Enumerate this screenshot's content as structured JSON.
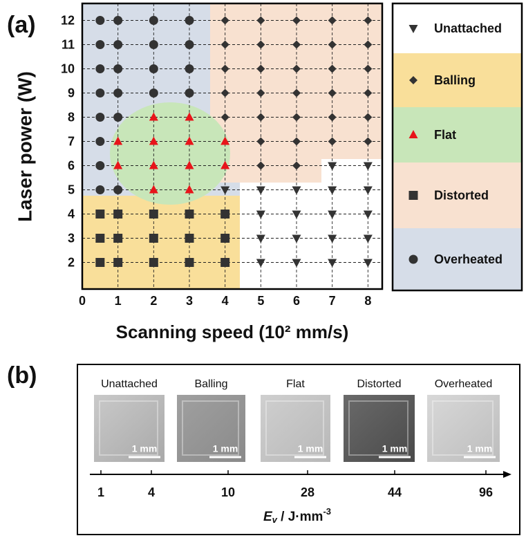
{
  "chart_data": {
    "type": "scatter",
    "panel_label": "(a)",
    "x_label": "Scanning speed (10² mm/s)",
    "y_label": "Laser power (W)",
    "xlim": [
      0,
      8.4
    ],
    "ylim": [
      0.9,
      12.7
    ],
    "xticks": [
      0,
      1,
      2,
      3,
      4,
      5,
      6,
      7,
      8
    ],
    "yticks": [
      2,
      3,
      4,
      5,
      6,
      7,
      8,
      9,
      10,
      11,
      12
    ],
    "grid": true,
    "legend": "right",
    "series": [
      {
        "name": "Unattached",
        "marker": "triangle-down",
        "color": "#333333",
        "band_color": "#ffffff",
        "x": [
          4,
          4,
          4,
          4,
          5,
          5,
          5,
          5,
          6,
          6,
          6,
          6,
          7,
          7,
          7,
          7,
          7,
          8,
          8,
          8,
          8,
          8
        ],
        "y": [
          2,
          3,
          4,
          5,
          2,
          3,
          4,
          5,
          2,
          3,
          4,
          5,
          2,
          3,
          4,
          5,
          6,
          2,
          3,
          4,
          5,
          6
        ]
      },
      {
        "name": "Balling",
        "marker": "diamond",
        "color": "#333333",
        "band_color": "#f9df9a",
        "x": [
          4,
          4,
          4,
          4,
          4,
          5,
          5,
          5,
          5,
          5,
          5,
          5,
          6,
          6,
          6,
          6,
          6,
          6,
          6,
          7,
          7,
          7,
          7,
          7,
          7,
          8,
          8,
          8,
          8,
          8,
          8
        ],
        "y": [
          8,
          9,
          10,
          11,
          12,
          6,
          7,
          8,
          9,
          10,
          11,
          12,
          6,
          7,
          8,
          9,
          10,
          11,
          12,
          7,
          8,
          9,
          10,
          11,
          12,
          7,
          8,
          9,
          10,
          11,
          12
        ]
      },
      {
        "name": "Flat",
        "marker": "triangle-up",
        "color": "#e8141a",
        "band_color": "#c8e6b9",
        "x": [
          1,
          1,
          2,
          2,
          2,
          2,
          3,
          3,
          3,
          3,
          4,
          4
        ],
        "y": [
          6,
          7,
          5,
          6,
          7,
          8,
          5,
          6,
          7,
          8,
          6,
          7
        ]
      },
      {
        "name": "Distorted",
        "marker": "square",
        "color": "#333333",
        "band_color": "#f8e1d0",
        "x": [
          0.5,
          0.5,
          0.5,
          1,
          1,
          1,
          2,
          2,
          2,
          3,
          3,
          3,
          4,
          4,
          4
        ],
        "y": [
          2,
          3,
          4,
          2,
          3,
          4,
          2,
          3,
          4,
          2,
          3,
          4,
          2,
          3,
          4
        ]
      },
      {
        "name": "Overheated",
        "marker": "circle",
        "color": "#333333",
        "band_color": "#d6dde8",
        "x": [
          0.5,
          0.5,
          0.5,
          0.5,
          0.5,
          0.5,
          0.5,
          0.5,
          1,
          1,
          1,
          1,
          1,
          1,
          2,
          2,
          2,
          2,
          3,
          3,
          3,
          3
        ],
        "y": [
          5,
          6,
          7,
          8,
          9,
          10,
          11,
          12,
          5,
          8,
          9,
          10,
          11,
          12,
          9,
          10,
          11,
          12,
          9,
          10,
          11,
          12
        ]
      }
    ]
  },
  "panel_b": {
    "panel_label": "(b)",
    "samples": [
      {
        "label": "Unattached",
        "scale_bar": "1 mm"
      },
      {
        "label": "Balling",
        "scale_bar": "1 mm"
      },
      {
        "label": "Flat",
        "scale_bar": "1 mm"
      },
      {
        "label": "Distorted",
        "scale_bar": "1 mm"
      },
      {
        "label": "Overheated",
        "scale_bar": "1 mm"
      }
    ],
    "energy_axis": {
      "labels": [
        "1",
        "4",
        "10",
        "28",
        "44",
        "96"
      ],
      "title": {
        "symbol": "E",
        "subscript": "v",
        "unit": " / J·mm",
        "exponent": "-3"
      }
    }
  }
}
